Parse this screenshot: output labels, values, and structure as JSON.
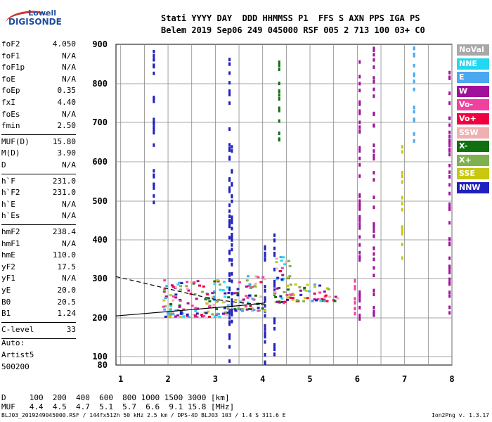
{
  "logo": {
    "line1": "Lowell",
    "line2": "DIGISONDE"
  },
  "header": {
    "row1": "Stati YYYY DAY  DDD HHMMSS P1  FFS S AXN PPS IGA PS",
    "row2": "Belem 2019 Sep06 249 045000 RSF 005 2 713 100 03+ C0"
  },
  "params": [
    {
      "group": 1,
      "key": "foF2",
      "value": "4.050"
    },
    {
      "group": 1,
      "key": "foF1",
      "value": "N/A"
    },
    {
      "group": 1,
      "key": "foF1p",
      "value": "N/A"
    },
    {
      "group": 1,
      "key": "foE",
      "value": "N/A"
    },
    {
      "group": 1,
      "key": "foEp",
      "value": "0.35"
    },
    {
      "group": 1,
      "key": "fxI",
      "value": "4.40"
    },
    {
      "group": 1,
      "key": "foEs",
      "value": "N/A"
    },
    {
      "group": 1,
      "key": "fmin",
      "value": "2.50"
    },
    {
      "group": 2,
      "key": "MUF(D)",
      "value": "15.80"
    },
    {
      "group": 2,
      "key": "M(D)",
      "value": "3.90"
    },
    {
      "group": 2,
      "key": "D",
      "value": "N/A"
    },
    {
      "group": 3,
      "key": "h`F",
      "value": "231.0"
    },
    {
      "group": 3,
      "key": "h`F2",
      "value": "231.0"
    },
    {
      "group": 3,
      "key": "h`E",
      "value": "N/A"
    },
    {
      "group": 3,
      "key": "h`Es",
      "value": "N/A"
    },
    {
      "group": 4,
      "key": "hmF2",
      "value": "238.4"
    },
    {
      "group": 4,
      "key": "hmF1",
      "value": "N/A"
    },
    {
      "group": 4,
      "key": "hmE",
      "value": "110.0"
    },
    {
      "group": 4,
      "key": "yF2",
      "value": "17.5"
    },
    {
      "group": 4,
      "key": "yF1",
      "value": "N/A"
    },
    {
      "group": 4,
      "key": "yE",
      "value": "20.0"
    },
    {
      "group": 4,
      "key": "B0",
      "value": "20.5"
    },
    {
      "group": 4,
      "key": "B1",
      "value": "1.24"
    },
    {
      "group": 5,
      "key": "C-level",
      "value": "33"
    }
  ],
  "auto": {
    "label": "Auto:",
    "artist": "Artist5",
    "code": "500200"
  },
  "dmuf": {
    "row1": "D     100  200  400  600  800 1000 1500 3000 [km]",
    "row2": "MUF   4.4  4.5  4.7  5.1  5.7  6.6  9.1 15.8 [MHz]"
  },
  "footer": {
    "left": "BLJ03_2019249045000.RSF / 144fx512h 50 kHz 2.5 km / DPS-4D BLJ03 103 / 1.4 S 311.6 E",
    "right": "Ion2Png v. 1.3.17"
  },
  "legend": [
    {
      "label": "NoVal",
      "color": "#a8a8a8"
    },
    {
      "label": "NNE",
      "color": "#22d8f0"
    },
    {
      "label": "E",
      "color": "#4aa8f0"
    },
    {
      "label": "W",
      "color": "#a0109a"
    },
    {
      "label": "Vo-",
      "color": "#f040a0"
    },
    {
      "label": "Vo+",
      "color": "#f00040"
    },
    {
      "label": "SSW",
      "color": "#f0b0b0"
    },
    {
      "label": "X-",
      "color": "#107010"
    },
    {
      "label": "X+",
      "color": "#80b050"
    },
    {
      "label": "SSE",
      "color": "#c8c810"
    },
    {
      "label": "NNW",
      "color": "#2020c0"
    }
  ],
  "chart_data": {
    "type": "scatter",
    "title": "",
    "xlabel": "",
    "ylabel": "",
    "x_ticks": [
      "1",
      "2",
      "3",
      "4",
      "5",
      "6",
      "7",
      "8"
    ],
    "y_ticks": [
      "80",
      "100",
      "200",
      "300",
      "400",
      "500",
      "600",
      "700",
      "800",
      "900"
    ],
    "xlim": [
      0.9,
      8.0
    ],
    "ylim": [
      80,
      900
    ],
    "grid": true,
    "legend_position": "right",
    "curves": [
      {
        "style": "solid",
        "points": [
          [
            0.9,
            205
          ],
          [
            1.5,
            211
          ],
          [
            2.0,
            216
          ],
          [
            2.5,
            221
          ],
          [
            3.0,
            226
          ],
          [
            3.5,
            231
          ],
          [
            4.05,
            238
          ]
        ]
      },
      {
        "style": "dashed",
        "points": [
          [
            0.9,
            305
          ],
          [
            1.5,
            288
          ],
          [
            2.0,
            274
          ],
          [
            2.5,
            260
          ],
          [
            3.0,
            247
          ],
          [
            3.5,
            239
          ],
          [
            4.05,
            233
          ]
        ]
      }
    ],
    "echo_columns": [
      {
        "x": 3.3,
        "y_from": 88,
        "y_to": 890,
        "color": "#2020c0"
      },
      {
        "x": 3.35,
        "y_from": 180,
        "y_to": 690,
        "color": "#2020c0"
      },
      {
        "x": 4.05,
        "y_from": 80,
        "y_to": 420,
        "color": "#2020c0"
      },
      {
        "x": 4.25,
        "y_from": 80,
        "y_to": 430,
        "color": "#2020c0"
      },
      {
        "x": 4.35,
        "y_from": 640,
        "y_to": 860,
        "color": "#107010"
      },
      {
        "x": 6.05,
        "y_from": 190,
        "y_to": 900,
        "color": "#a0109a"
      },
      {
        "x": 6.35,
        "y_from": 210,
        "y_to": 900,
        "color": "#a0109a"
      },
      {
        "x": 7.2,
        "y_from": 640,
        "y_to": 900,
        "color": "#4aa8f0"
      },
      {
        "x": 7.95,
        "y_from": 215,
        "y_to": 870,
        "color": "#a0109a"
      },
      {
        "x": 6.95,
        "y_from": 350,
        "y_to": 650,
        "color": "#c8c810"
      },
      {
        "x": 1.7,
        "y_from": 490,
        "y_to": 900,
        "color": "#2020c0"
      },
      {
        "x": 5.95,
        "y_from": 190,
        "y_to": 300,
        "color": "#f040a0"
      }
    ],
    "echo_clusters": [
      {
        "x_from": 1.9,
        "x_to": 3.3,
        "y_from": 205,
        "y_to": 300
      },
      {
        "x_from": 3.4,
        "x_to": 4.05,
        "y_from": 220,
        "y_to": 310
      },
      {
        "x_from": 4.25,
        "x_to": 4.6,
        "y_from": 240,
        "y_to": 370
      },
      {
        "x_from": 4.6,
        "x_to": 5.6,
        "y_from": 245,
        "y_to": 290
      }
    ]
  }
}
